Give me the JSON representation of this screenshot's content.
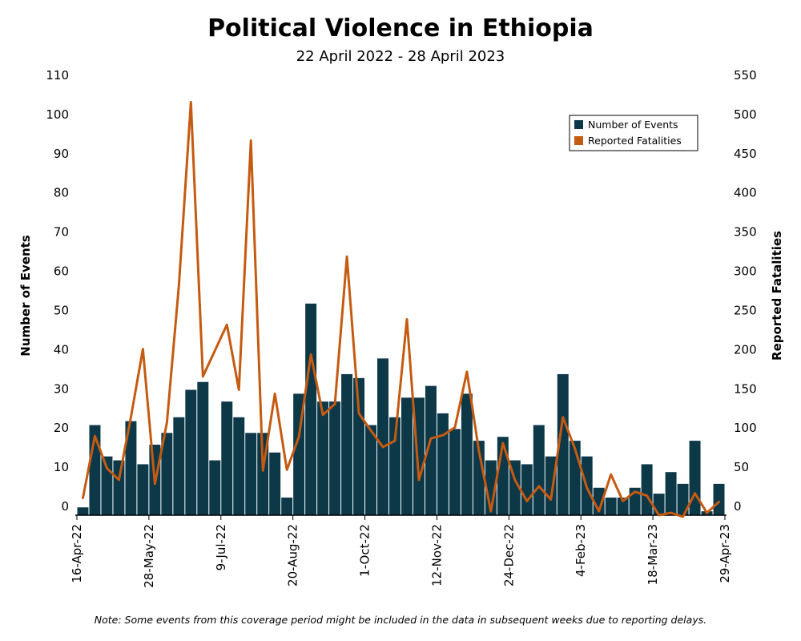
{
  "chart_data": {
    "type": "bar",
    "title": "Political Violence in Ethiopia",
    "subtitle": "22 April 2022 - 28 April 2023",
    "note": "Note: Some events from this coverage period might be included in the data in subsequent weeks due to reporting delays.",
    "ylabel": "Number of Events",
    "y2label": "Reported Fatalities",
    "ylim": [
      0,
      110
    ],
    "y2lim": [
      0,
      550
    ],
    "yticks": [
      0,
      10,
      20,
      30,
      40,
      50,
      60,
      70,
      80,
      90,
      100,
      110
    ],
    "y2ticks": [
      0,
      50,
      100,
      150,
      200,
      250,
      300,
      350,
      400,
      450,
      500,
      550
    ],
    "x_tick_labels": [
      "16-Apr-22",
      "28-May-22",
      "9-Jul-22",
      "20-Aug-22",
      "1-Oct-22",
      "12-Nov-22",
      "24-Dec-22",
      "4-Feb-23",
      "18-Mar-23",
      "29-Apr-23"
    ],
    "x_tick_weeks": [
      0,
      6,
      12,
      18,
      24,
      30,
      36,
      42,
      48,
      54
    ],
    "legend": {
      "position": "top-right"
    },
    "colors": {
      "events": "#0d3848",
      "fatalities": "#c55a11"
    },
    "series": [
      {
        "name": "Number of Events",
        "axis": "left",
        "kind": "bar",
        "values": [
          2,
          23,
          15,
          14,
          24,
          13,
          18,
          21,
          25,
          32,
          34,
          14,
          29,
          25,
          21,
          21,
          16,
          4.5,
          31,
          54,
          29,
          29,
          36,
          35,
          23,
          40,
          25,
          30,
          30,
          33,
          26,
          22,
          31,
          19,
          14,
          20,
          14,
          13,
          23,
          15,
          36,
          19,
          15,
          7,
          4.5,
          4.5,
          7,
          13,
          5.5,
          11,
          8,
          19,
          1,
          8
        ]
      },
      {
        "name": "Reported Fatalities",
        "axis": "right",
        "kind": "line",
        "values": [
          22,
          101,
          60,
          45,
          125,
          212,
          40,
          118,
          293,
          527,
          177,
          210,
          243,
          160,
          478,
          57,
          155,
          58,
          100,
          205,
          128,
          142,
          330,
          130,
          108,
          87,
          95,
          250,
          45,
          98,
          102,
          112,
          183,
          82,
          5,
          92,
          45,
          18,
          37,
          20,
          125,
          85,
          35,
          5,
          52,
          18,
          30,
          25,
          0,
          3,
          -2,
          28,
          3,
          17
        ]
      }
    ]
  }
}
